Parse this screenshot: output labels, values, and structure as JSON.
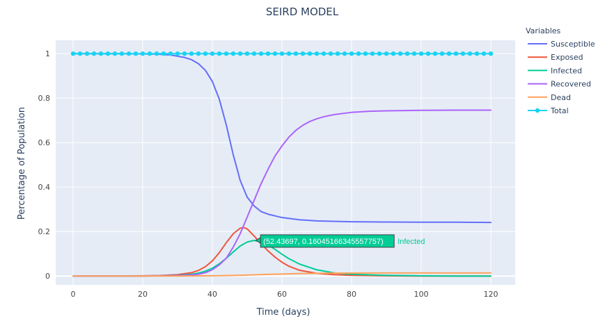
{
  "chart_data": {
    "type": "line",
    "title": "SEIRD MODEL",
    "xlabel": "Time (days)",
    "ylabel": "Percentage of Population",
    "xlim": [
      -5,
      127
    ],
    "ylim": [
      -0.04,
      1.06
    ],
    "x_ticks": [
      0,
      20,
      40,
      60,
      80,
      100,
      120
    ],
    "x_tick_labels": [
      "0",
      "20",
      "40",
      "60",
      "80",
      "100",
      "120"
    ],
    "y_ticks": [
      0,
      0.2,
      0.4,
      0.6,
      0.8,
      1
    ],
    "y_tick_labels": [
      "0",
      "0.2",
      "0.4",
      "0.6",
      "0.8",
      "1"
    ],
    "grid": true,
    "legend_title": "Variables",
    "legend_position": "right",
    "series": [
      {
        "name": "Susceptible",
        "color": "#636efa",
        "mode": "lines",
        "x": [
          0,
          10,
          20,
          24,
          28,
          32,
          34,
          36,
          38,
          40,
          42,
          44,
          46,
          48,
          50,
          52,
          54,
          56,
          60,
          65,
          70,
          80,
          90,
          100,
          110,
          120
        ],
        "y": [
          1.0,
          1.0,
          0.999,
          0.998,
          0.994,
          0.983,
          0.973,
          0.955,
          0.925,
          0.875,
          0.795,
          0.68,
          0.545,
          0.43,
          0.355,
          0.315,
          0.29,
          0.278,
          0.263,
          0.253,
          0.248,
          0.244,
          0.243,
          0.242,
          0.242,
          0.241
        ]
      },
      {
        "name": "Exposed",
        "color": "#ef553b",
        "mode": "lines",
        "x": [
          0,
          10,
          20,
          25,
          30,
          34,
          36,
          38,
          40,
          42,
          44,
          46,
          48,
          49,
          50,
          52,
          54,
          56,
          58,
          60,
          62,
          65,
          70,
          75,
          80,
          90,
          100,
          110,
          120
        ],
        "y": [
          0.0,
          0.0,
          0.001,
          0.002,
          0.006,
          0.015,
          0.025,
          0.042,
          0.068,
          0.105,
          0.15,
          0.19,
          0.215,
          0.218,
          0.212,
          0.18,
          0.145,
          0.113,
          0.085,
          0.062,
          0.044,
          0.026,
          0.012,
          0.006,
          0.003,
          0.001,
          0.0,
          0.0,
          0.0
        ]
      },
      {
        "name": "Infected",
        "color": "#00cc96",
        "mode": "lines",
        "x": [
          0,
          10,
          20,
          25,
          30,
          34,
          36,
          38,
          40,
          42,
          44,
          46,
          48,
          50,
          52,
          54,
          56,
          58,
          60,
          62,
          65,
          70,
          75,
          80,
          90,
          100,
          110,
          120
        ],
        "y": [
          0.0,
          0.0,
          0.0,
          0.001,
          0.003,
          0.008,
          0.013,
          0.022,
          0.035,
          0.055,
          0.08,
          0.108,
          0.135,
          0.153,
          0.16,
          0.155,
          0.14,
          0.12,
          0.098,
          0.078,
          0.054,
          0.028,
          0.014,
          0.008,
          0.003,
          0.001,
          0.0,
          0.0
        ]
      },
      {
        "name": "Recovered",
        "color": "#ab63fa",
        "mode": "lines",
        "x": [
          0,
          10,
          20,
          25,
          30,
          34,
          36,
          38,
          40,
          42,
          44,
          46,
          48,
          50,
          52,
          54,
          56,
          58,
          60,
          62,
          64,
          66,
          68,
          70,
          72,
          75,
          80,
          85,
          90,
          100,
          110,
          120
        ],
        "y": [
          0.0,
          0.0,
          0.0,
          0.001,
          0.002,
          0.005,
          0.008,
          0.015,
          0.028,
          0.05,
          0.08,
          0.13,
          0.19,
          0.265,
          0.34,
          0.415,
          0.48,
          0.54,
          0.585,
          0.625,
          0.655,
          0.678,
          0.695,
          0.707,
          0.716,
          0.726,
          0.736,
          0.741,
          0.743,
          0.745,
          0.746,
          0.746
        ]
      },
      {
        "name": "Dead",
        "color": "#ffa15a",
        "mode": "lines",
        "x": [
          0,
          20,
          30,
          40,
          45,
          50,
          55,
          60,
          65,
          70,
          75,
          80,
          90,
          100,
          110,
          120
        ],
        "y": [
          0.0,
          0.0,
          0.0,
          0.001,
          0.002,
          0.004,
          0.007,
          0.009,
          0.011,
          0.012,
          0.013,
          0.013,
          0.014,
          0.014,
          0.014,
          0.014
        ]
      },
      {
        "name": "Total",
        "color": "#19d3f3",
        "mode": "lines+markers",
        "x_start": 0,
        "x_end": 120,
        "x_step": 2,
        "y_constant": 1.0
      }
    ],
    "tooltip": {
      "text": "(52.43697, 0.16045166345557757)",
      "series_name": "Infected",
      "x": 52.43697,
      "y": 0.16045166345557757,
      "background": "#00cc96",
      "name_color": "#00cc96"
    }
  }
}
